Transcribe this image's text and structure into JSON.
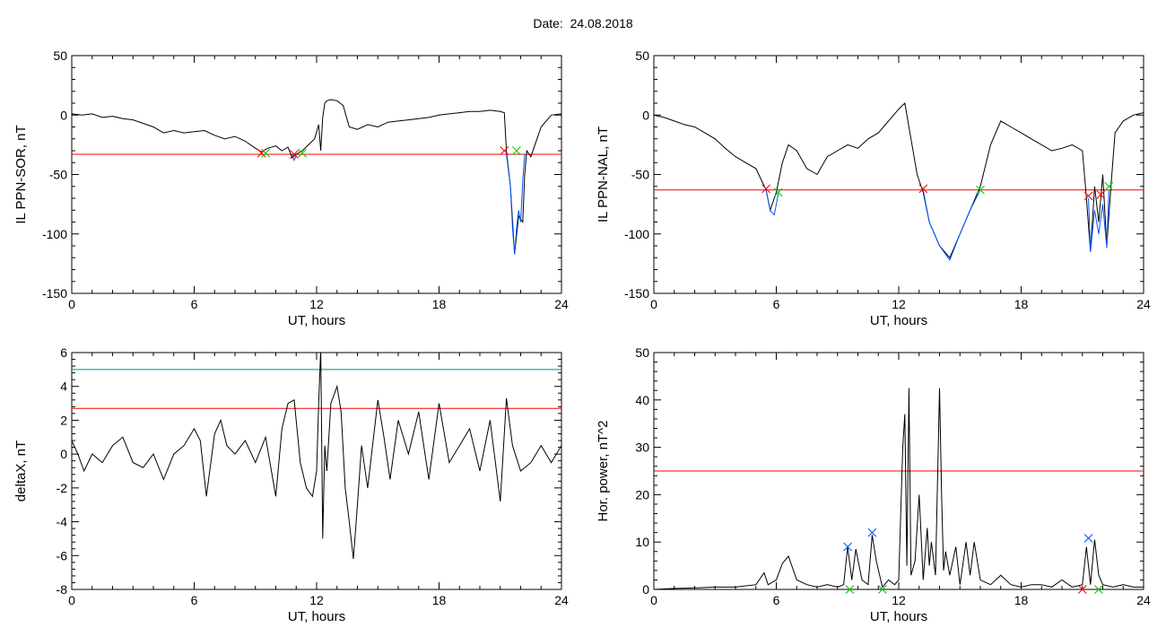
{
  "header": {
    "date_label": "Date:",
    "date_value": "24.08.2018"
  },
  "chart_data": [
    {
      "type": "line",
      "panel": "top-left",
      "xlabel": "UT, hours",
      "ylabel": "IL PPN-SOR, nT",
      "xlim": [
        0,
        24
      ],
      "ylim": [
        -150,
        50
      ],
      "xticks": [
        0,
        6,
        12,
        18,
        24
      ],
      "yticks": [
        -150,
        -100,
        -50,
        0,
        50
      ],
      "threshold": {
        "value": -33,
        "color": "#ff0000"
      },
      "series": [
        {
          "color": "#000000",
          "x": [
            0,
            0.5,
            1,
            1.5,
            2,
            2.5,
            3,
            3.5,
            4,
            4.5,
            5,
            5.5,
            6,
            6.5,
            7,
            7.5,
            8,
            8.5,
            9,
            9.3,
            9.6,
            10,
            10.3,
            10.6,
            10.8,
            11,
            11.3,
            11.6,
            11.9,
            12.1,
            12.2,
            12.3,
            12.4,
            12.5,
            12.7,
            13,
            13.3,
            13.6,
            14,
            14.5,
            15,
            15.5,
            16,
            16.5,
            17,
            17.5,
            18,
            18.5,
            19,
            19.5,
            20,
            20.5,
            21,
            21.2,
            21.3,
            21.5,
            21.7,
            21.9,
            22.1,
            22.2,
            22.3,
            22.5,
            23,
            23.5,
            24
          ],
          "values": [
            1,
            0,
            1,
            -2,
            -1,
            -3,
            -4,
            -7,
            -10,
            -15,
            -13,
            -15,
            -14,
            -13,
            -17,
            -20,
            -18,
            -22,
            -28,
            -31,
            -28,
            -26,
            -30,
            -27,
            -36,
            -33,
            -30,
            -25,
            -20,
            -8,
            -30,
            -2,
            10,
            12,
            13,
            12,
            8,
            -10,
            -12,
            -8,
            -10,
            -6,
            -5,
            -4,
            -3,
            -2,
            0,
            1,
            2,
            3,
            3,
            4,
            3,
            2,
            -30,
            -60,
            -117,
            -85,
            -90,
            -50,
            -30,
            -35,
            -10,
            0,
            1
          ]
        },
        {
          "color": "#0055ff",
          "x": [
            10.8,
            10.9,
            11.0
          ],
          "values": [
            -33,
            -38,
            -34
          ]
        },
        {
          "color": "#0055ff",
          "x": [
            21.3,
            21.5,
            21.6,
            21.7,
            21.8,
            21.9,
            22.0,
            22.1,
            22.2
          ],
          "values": [
            -33,
            -60,
            -95,
            -117,
            -95,
            -80,
            -90,
            -55,
            -33
          ]
        }
      ],
      "markers": [
        {
          "x": 9.3,
          "y": -32,
          "color": "#ff0000"
        },
        {
          "x": 9.5,
          "y": -32,
          "color": "#00cc00"
        },
        {
          "x": 10.9,
          "y": -33,
          "color": "#ff0000"
        },
        {
          "x": 11.3,
          "y": -32,
          "color": "#00cc00"
        },
        {
          "x": 21.2,
          "y": -30,
          "color": "#ff0000"
        },
        {
          "x": 21.8,
          "y": -30,
          "color": "#00cc00"
        }
      ]
    },
    {
      "type": "line",
      "panel": "top-right",
      "xlabel": "UT, hours",
      "ylabel": "IL PPN-NAL, nT",
      "xlim": [
        0,
        24
      ],
      "ylim": [
        -150,
        50
      ],
      "xticks": [
        0,
        6,
        12,
        18,
        24
      ],
      "yticks": [
        -150,
        -100,
        -50,
        0,
        50
      ],
      "threshold": {
        "value": -63,
        "color": "#ff0000"
      },
      "series": [
        {
          "color": "#000000",
          "x": [
            0,
            0.5,
            1,
            1.5,
            2,
            2.5,
            3,
            3.5,
            4,
            4.5,
            5,
            5.5,
            5.7,
            6,
            6.3,
            6.6,
            7,
            7.5,
            8,
            8.5,
            9,
            9.5,
            10,
            10.5,
            11,
            11.5,
            12,
            12.3,
            12.6,
            12.9,
            13.2,
            13.5,
            14,
            14.5,
            15,
            15.5,
            16,
            16.5,
            17,
            17.5,
            18,
            18.5,
            19,
            19.5,
            20,
            20.5,
            21,
            21.2,
            21.4,
            21.6,
            21.8,
            22,
            22.2,
            22.4,
            22.6,
            23,
            23.5,
            24
          ],
          "values": [
            0,
            -2,
            -5,
            -8,
            -10,
            -15,
            -20,
            -28,
            -35,
            -40,
            -45,
            -63,
            -80,
            -65,
            -40,
            -25,
            -30,
            -45,
            -50,
            -35,
            -30,
            -25,
            -28,
            -20,
            -15,
            -5,
            5,
            10,
            -20,
            -50,
            -65,
            -90,
            -110,
            -120,
            -100,
            -80,
            -60,
            -25,
            -5,
            -10,
            -15,
            -20,
            -25,
            -30,
            -28,
            -25,
            -30,
            -70,
            -115,
            -60,
            -90,
            -50,
            -110,
            -60,
            -15,
            -5,
            0,
            2
          ]
        },
        {
          "color": "#0055ff",
          "x": [
            5.5,
            5.7,
            5.9,
            6.1
          ],
          "values": [
            -63,
            -80,
            -84,
            -66
          ]
        },
        {
          "color": "#0055ff",
          "x": [
            13.2,
            13.5,
            14.0,
            14.5,
            15.0,
            15.5,
            16.0
          ],
          "values": [
            -63,
            -90,
            -110,
            -122,
            -100,
            -80,
            -63
          ]
        },
        {
          "color": "#0055ff",
          "x": [
            21.3,
            21.4,
            21.6,
            21.8,
            22.0,
            22.2,
            22.3
          ],
          "values": [
            -70,
            -115,
            -80,
            -100,
            -75,
            -112,
            -63
          ]
        }
      ],
      "markers": [
        {
          "x": 5.5,
          "y": -62,
          "color": "#ff0000"
        },
        {
          "x": 6.1,
          "y": -65,
          "color": "#00cc00"
        },
        {
          "x": 13.2,
          "y": -62,
          "color": "#ff0000"
        },
        {
          "x": 16.0,
          "y": -63,
          "color": "#00cc00"
        },
        {
          "x": 21.3,
          "y": -68,
          "color": "#ff0000"
        },
        {
          "x": 21.9,
          "y": -67,
          "color": "#ff0000"
        },
        {
          "x": 22.3,
          "y": -60,
          "color": "#00cc00"
        }
      ]
    },
    {
      "type": "line",
      "panel": "bottom-left",
      "xlabel": "UT, hours",
      "ylabel": "deltaX, nT",
      "xlim": [
        0,
        24
      ],
      "ylim": [
        -8,
        6
      ],
      "xticks": [
        0,
        6,
        12,
        18,
        24
      ],
      "yticks": [
        -8,
        -6,
        -4,
        -2,
        0,
        2,
        4,
        6
      ],
      "thresholds": [
        {
          "value": 2.7,
          "color": "#ff0000"
        },
        {
          "value": 5.0,
          "color": "#008b8b"
        }
      ],
      "series": [
        {
          "color": "#000000",
          "x": [
            0,
            0.3,
            0.6,
            1,
            1.5,
            2,
            2.5,
            3,
            3.5,
            4,
            4.5,
            5,
            5.5,
            6,
            6.3,
            6.6,
            7,
            7.3,
            7.6,
            8,
            8.5,
            9,
            9.5,
            10,
            10.3,
            10.6,
            10.9,
            11.2,
            11.5,
            11.8,
            12,
            12.1,
            12.2,
            12.3,
            12.4,
            12.5,
            12.7,
            13,
            13.2,
            13.4,
            13.6,
            13.8,
            14,
            14.2,
            14.5,
            15,
            15.3,
            15.6,
            16,
            16.5,
            17,
            17.5,
            18,
            18.5,
            19,
            19.5,
            20,
            20.5,
            21,
            21.3,
            21.6,
            22,
            22.5,
            23,
            23.5,
            24
          ],
          "values": [
            0.8,
            0,
            -1,
            0,
            -0.5,
            0.5,
            1.0,
            -0.5,
            -0.8,
            0,
            -1.5,
            0,
            0.5,
            1.5,
            0.8,
            -2.5,
            1.2,
            2.0,
            0.5,
            0,
            0.8,
            -0.5,
            1.0,
            -2.5,
            1.5,
            3.0,
            3.2,
            -0.5,
            -2.0,
            -2.5,
            -1.0,
            3.0,
            6.2,
            -5.0,
            0.5,
            -1.0,
            3.0,
            4.0,
            2.5,
            -2.0,
            -4.0,
            -6.2,
            -3.0,
            0.5,
            -2.0,
            3.2,
            1.0,
            -1.5,
            2.0,
            0,
            2.5,
            -1.5,
            3.0,
            -0.5,
            0.5,
            1.5,
            -1.0,
            2.0,
            -2.8,
            3.3,
            0.5,
            -1.0,
            -0.5,
            0.5,
            -0.5,
            0.5
          ]
        }
      ]
    },
    {
      "type": "line",
      "panel": "bottom-right",
      "xlabel": "UT, hours",
      "ylabel": "Hor. power, nT^2",
      "xlim": [
        0,
        24
      ],
      "ylim": [
        0,
        50
      ],
      "xticks": [
        0,
        6,
        12,
        18,
        24
      ],
      "yticks": [
        0,
        10,
        20,
        30,
        40,
        50
      ],
      "threshold": {
        "value": 25,
        "color": "#ff0000"
      },
      "series": [
        {
          "color": "#000000",
          "x": [
            0,
            1,
            2,
            3,
            4,
            5,
            5.4,
            5.6,
            6,
            6.3,
            6.6,
            7,
            7.5,
            8,
            8.5,
            9,
            9.3,
            9.5,
            9.7,
            9.9,
            10.2,
            10.5,
            10.7,
            10.9,
            11.2,
            11.5,
            11.8,
            12,
            12.2,
            12.3,
            12.4,
            12.5,
            12.6,
            12.8,
            13,
            13.2,
            13.4,
            13.5,
            13.6,
            13.8,
            14,
            14.1,
            14.2,
            14.3,
            14.5,
            14.8,
            15,
            15.3,
            15.5,
            15.7,
            16,
            16.5,
            17,
            17.5,
            18,
            18.5,
            19,
            19.5,
            20,
            20.5,
            21,
            21.2,
            21.4,
            21.6,
            21.8,
            22,
            22.5,
            23,
            23.5,
            24
          ],
          "values": [
            0,
            0.2,
            0.3,
            0.5,
            0.5,
            1.0,
            3.5,
            1.0,
            2.0,
            5.5,
            7.0,
            2.0,
            1.0,
            0.5,
            1.0,
            0.5,
            1.0,
            9.0,
            2.0,
            8.5,
            2.0,
            1.0,
            11.5,
            6.0,
            0.5,
            2.0,
            1.0,
            2.0,
            30.0,
            37.0,
            5.0,
            42.5,
            3.0,
            6.0,
            20.0,
            2.0,
            13.0,
            5.0,
            10.0,
            3.0,
            42.5,
            20.0,
            4.0,
            8.0,
            3.0,
            9.0,
            1.0,
            10.0,
            3.0,
            10.0,
            2.0,
            1.0,
            3.0,
            1.0,
            0.5,
            1.0,
            1.0,
            0.5,
            2.0,
            0.5,
            1.0,
            9.0,
            1.0,
            10.5,
            3.0,
            1.0,
            0.5,
            1.0,
            0.5,
            0.5
          ]
        }
      ],
      "markers": [
        {
          "x": 9.5,
          "y": 9.0,
          "color": "#0055ff"
        },
        {
          "x": 10.7,
          "y": 12.0,
          "color": "#0055ff"
        },
        {
          "x": 21.3,
          "y": 10.8,
          "color": "#0055ff"
        },
        {
          "x": 9.6,
          "y": 0,
          "color": "#00cc00"
        },
        {
          "x": 11.2,
          "y": 0,
          "color": "#00cc00"
        },
        {
          "x": 21.0,
          "y": 0,
          "color": "#ff0000"
        },
        {
          "x": 21.8,
          "y": 0,
          "color": "#00cc00"
        }
      ]
    }
  ]
}
